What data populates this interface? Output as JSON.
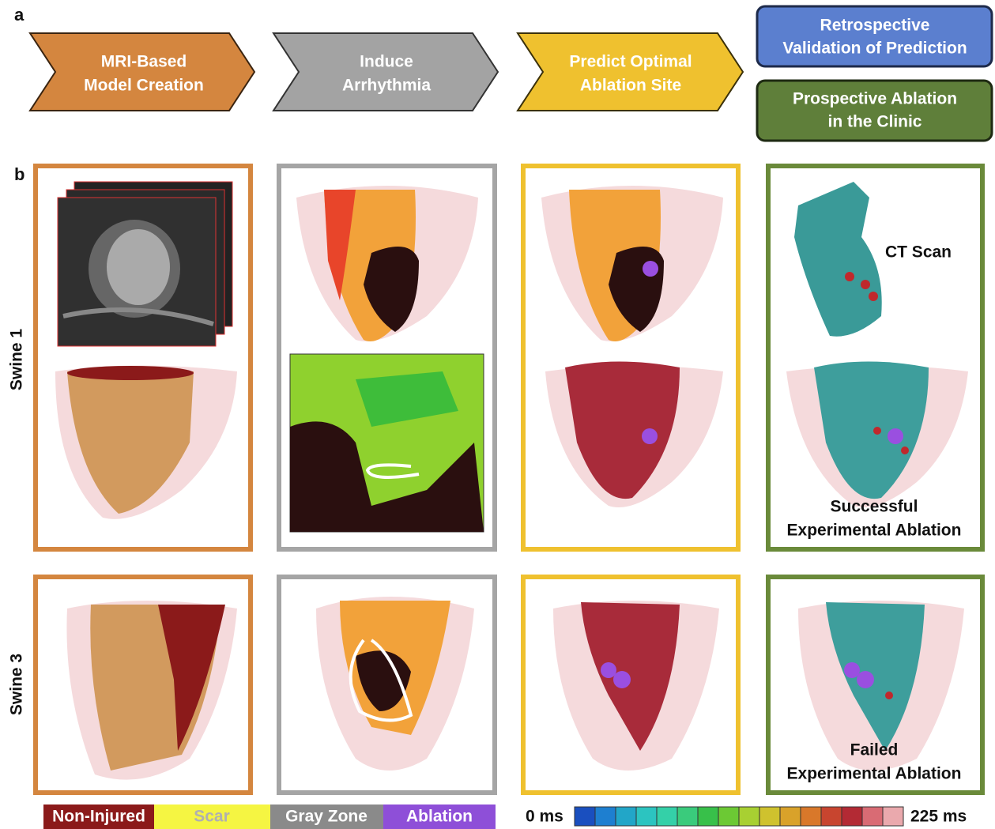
{
  "figure": {
    "panel_labels": [
      "a",
      "b"
    ],
    "workflow": [
      {
        "lines": [
          "MRI-Based",
          "Model Creation"
        ]
      },
      {
        "lines": [
          "Induce",
          "Arrhythmia"
        ]
      },
      {
        "lines": [
          "Predict Optimal",
          "Ablation Site"
        ]
      },
      {
        "lines": [
          "Retrospective",
          "Validation of Prediction"
        ]
      },
      {
        "lines": [
          "Prospective Ablation",
          "in the Clinic"
        ]
      }
    ],
    "rows": [
      "Swine 1",
      "Swine 3"
    ],
    "annotations": {
      "ct_scan": "CT Scan",
      "success": [
        "Successful",
        "Experimental Ablation"
      ],
      "failed": [
        "Failed",
        "Experimental Ablation"
      ]
    },
    "legend": [
      "Non-Injured",
      "Scar",
      "Gray Zone",
      "Ablation"
    ],
    "colorbar": {
      "min_label": "0 ms",
      "max_label": "225 ms"
    }
  }
}
